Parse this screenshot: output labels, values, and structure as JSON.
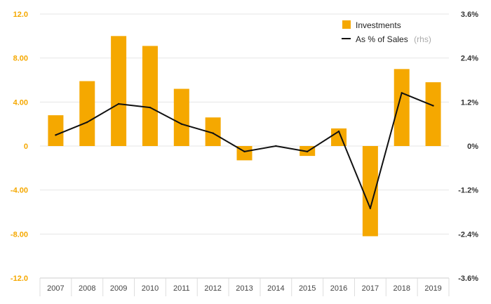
{
  "chart_data": {
    "type": "bar",
    "categories": [
      "2007",
      "2008",
      "2009",
      "2010",
      "2011",
      "2012",
      "2013",
      "2014",
      "2015",
      "2016",
      "2017",
      "2018",
      "2019"
    ],
    "series": [
      {
        "name": "Investments",
        "type": "bar",
        "axis": "left",
        "values": [
          2.8,
          5.9,
          10.0,
          9.1,
          5.2,
          2.6,
          -1.3,
          0,
          -0.9,
          1.6,
          -8.2,
          7.0,
          5.8
        ]
      },
      {
        "name": "As % of Sales",
        "name_suffix": "(rhs)",
        "type": "line",
        "axis": "right",
        "values": [
          0.3,
          0.65,
          1.15,
          1.05,
          0.6,
          0.35,
          -0.15,
          0,
          -0.15,
          0.4,
          -1.7,
          1.45,
          1.1
        ]
      }
    ],
    "left_axis": {
      "ylim": [
        -12,
        12
      ],
      "ticks": [
        "12.0",
        "8.00",
        "4.00",
        "0",
        "-4.00",
        "-8.00",
        "-12.0"
      ],
      "tick_values": [
        12,
        8,
        4,
        0,
        -4,
        -8,
        -12
      ]
    },
    "right_axis": {
      "ylim": [
        -3.6,
        3.6
      ],
      "ticks": [
        "3.6%",
        "2.4%",
        "1.2%",
        "0%",
        "-1.2%",
        "-2.4%",
        "-3.6%"
      ],
      "tick_values": [
        3.6,
        2.4,
        1.2,
        0,
        -1.2,
        -2.4,
        -3.6
      ]
    },
    "legend_position": "top-right",
    "grid": true,
    "colors": {
      "bar": "#f5a800",
      "line": "#111111",
      "grid": "#e6e6e6",
      "left_tick": "#f5a800",
      "right_tick": "#333333"
    }
  }
}
